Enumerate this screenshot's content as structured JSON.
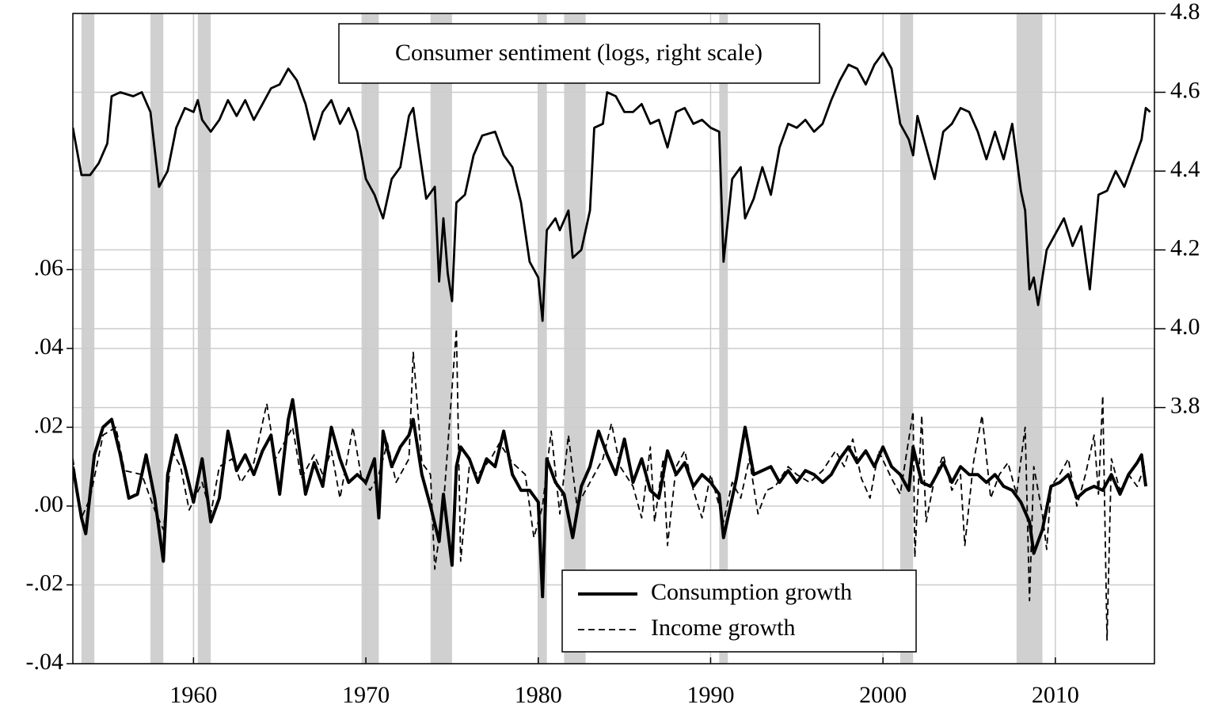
{
  "chart_data": {
    "type": "line",
    "xlim": [
      1953,
      2015.75
    ],
    "xticks": [
      1960,
      1970,
      1980,
      1990,
      2000,
      2010
    ],
    "ylim": [
      -0.04,
      0.125
    ],
    "yticks": [
      {
        "value": -0.04,
        "label": "-.04"
      },
      {
        "value": -0.02,
        "label": "-.02"
      },
      {
        "value": 0,
        "label": ".00"
      },
      {
        "value": 0.02,
        "label": ".02"
      },
      {
        "value": 0.04,
        "label": ".04"
      },
      {
        "value": 0.06,
        "label": ".06"
      }
    ],
    "y2lim": [
      3.15,
      4.8
    ],
    "y2ticks": [
      3.8,
      {
        "value": 4,
        "label": "4.0"
      },
      4.2,
      4.4,
      4.6,
      4.8
    ],
    "grid": true,
    "recession_color": "#d0d0d0",
    "recessions": [
      [
        1953.5,
        1954.25
      ],
      [
        1957.5,
        1958.25
      ],
      [
        1960.25,
        1961
      ],
      [
        1969.75,
        1970.75
      ],
      [
        1973.75,
        1975
      ],
      [
        1980,
        1980.5
      ],
      [
        1981.5,
        1982.75
      ],
      [
        1990.5,
        1991
      ],
      [
        2001,
        2001.75
      ],
      [
        2007.75,
        2009.25
      ]
    ],
    "series": [
      {
        "name": "Consumer sentiment (logs, right scale)",
        "color": "#000000",
        "axis": "y2",
        "style": "solid",
        "x": [
          1953,
          1953.5,
          1954,
          1954.5,
          1955,
          1955.25,
          1955.75,
          1956.5,
          1957,
          1957.5,
          1958,
          1958.5,
          1959,
          1959.5,
          1960,
          1960.25,
          1960.5,
          1961,
          1961.5,
          1962,
          1962.5,
          1963,
          1963.5,
          1964,
          1964.5,
          1965,
          1965.5,
          1966,
          1966.5,
          1967,
          1967.5,
          1968,
          1968.5,
          1969,
          1969.5,
          1970,
          1970.5,
          1971,
          1971.5,
          1972,
          1972.5,
          1972.75,
          1973,
          1973.5,
          1974,
          1974.25,
          1974.5,
          1974.75,
          1975,
          1975.25,
          1975.75,
          1976.25,
          1976.75,
          1977.5,
          1978,
          1978.5,
          1979,
          1979.5,
          1980,
          1980.25,
          1980.5,
          1981,
          1981.25,
          1981.75,
          1982,
          1982.5,
          1983,
          1983.25,
          1983.75,
          1984,
          1984.5,
          1985,
          1985.5,
          1986,
          1986.5,
          1987,
          1987.5,
          1988,
          1988.5,
          1989,
          1989.5,
          1990,
          1990.5,
          1990.75,
          1991.25,
          1991.75,
          1992,
          1992.5,
          1993,
          1993.5,
          1994,
          1994.5,
          1995,
          1995.5,
          1996,
          1996.5,
          1997,
          1997.5,
          1998,
          1998.5,
          1999,
          1999.5,
          2000,
          2000.5,
          2001,
          2001.5,
          2001.75,
          2002,
          2002.5,
          2003,
          2003.5,
          2004,
          2004.5,
          2005,
          2005.5,
          2006,
          2006.5,
          2007,
          2007.5,
          2008,
          2008.25,
          2008.5,
          2008.75,
          2009,
          2009.5,
          2010,
          2010.5,
          2011,
          2011.5,
          2012,
          2012.5,
          2013,
          2013.5,
          2014,
          2014.5,
          2015,
          2015.25,
          2015.5
        ],
        "values": [
          4.51,
          4.39,
          4.39,
          4.42,
          4.47,
          4.59,
          4.6,
          4.59,
          4.6,
          4.55,
          4.36,
          4.4,
          4.51,
          4.56,
          4.55,
          4.58,
          4.53,
          4.5,
          4.53,
          4.58,
          4.54,
          4.58,
          4.53,
          4.57,
          4.61,
          4.62,
          4.66,
          4.63,
          4.57,
          4.48,
          4.55,
          4.58,
          4.52,
          4.56,
          4.5,
          4.38,
          4.34,
          4.28,
          4.38,
          4.41,
          4.54,
          4.56,
          4.48,
          4.33,
          4.36,
          4.12,
          4.28,
          4.14,
          4.07,
          4.32,
          4.34,
          4.44,
          4.49,
          4.5,
          4.44,
          4.41,
          4.32,
          4.17,
          4.13,
          4.02,
          4.25,
          4.28,
          4.25,
          4.3,
          4.18,
          4.2,
          4.3,
          4.51,
          4.52,
          4.6,
          4.59,
          4.55,
          4.55,
          4.57,
          4.52,
          4.53,
          4.46,
          4.55,
          4.56,
          4.52,
          4.53,
          4.51,
          4.5,
          4.17,
          4.38,
          4.41,
          4.28,
          4.33,
          4.41,
          4.34,
          4.46,
          4.52,
          4.51,
          4.53,
          4.5,
          4.52,
          4.58,
          4.63,
          4.67,
          4.66,
          4.62,
          4.67,
          4.7,
          4.66,
          4.52,
          4.48,
          4.44,
          4.54,
          4.46,
          4.38,
          4.5,
          4.52,
          4.56,
          4.55,
          4.5,
          4.43,
          4.5,
          4.43,
          4.52,
          4.35,
          4.3,
          4.1,
          4.13,
          4.06,
          4.2,
          4.24,
          4.28,
          4.21,
          4.26,
          4.1,
          4.34,
          4.35,
          4.4,
          4.36,
          4.42,
          4.48,
          4.56,
          4.55
        ]
      },
      {
        "name": "Consumption growth",
        "color": "#000000",
        "axis": "y",
        "style": "solid",
        "x": [
          1953,
          1953.5,
          1953.75,
          1954.25,
          1954.75,
          1955.25,
          1955.75,
          1956.25,
          1956.75,
          1957.25,
          1957.75,
          1958.25,
          1958.5,
          1959,
          1959.5,
          1960,
          1960.5,
          1961,
          1961.5,
          1962,
          1962.5,
          1963,
          1963.5,
          1964,
          1964.5,
          1965,
          1965.5,
          1965.75,
          1966.5,
          1967,
          1967.5,
          1968,
          1968.5,
          1969,
          1969.5,
          1970,
          1970.5,
          1970.75,
          1971,
          1971.5,
          1972,
          1972.5,
          1972.75,
          1973.25,
          1973.75,
          1974.25,
          1974.5,
          1975,
          1975.25,
          1975.5,
          1976,
          1976.5,
          1977,
          1977.5,
          1978,
          1978.5,
          1979,
          1979.5,
          1980,
          1980.25,
          1980.5,
          1981,
          1981.5,
          1982,
          1982.5,
          1983,
          1983.5,
          1984,
          1984.5,
          1985,
          1985.5,
          1986,
          1986.5,
          1987,
          1987.5,
          1988,
          1988.5,
          1989,
          1989.5,
          1990,
          1990.5,
          1990.75,
          1991.5,
          1992,
          1992.5,
          1993,
          1993.5,
          1994,
          1994.5,
          1995,
          1995.5,
          1996,
          1996.5,
          1997,
          1997.5,
          1998,
          1998.5,
          1999,
          1999.5,
          2000,
          2000.5,
          2001,
          2001.5,
          2001.75,
          2002.25,
          2002.75,
          2003.5,
          2004,
          2004.5,
          2005,
          2005.5,
          2006,
          2006.5,
          2007,
          2007.5,
          2008,
          2008.5,
          2008.75,
          2009.25,
          2009.75,
          2010.25,
          2010.75,
          2011.25,
          2011.75,
          2012.25,
          2012.75,
          2013.25,
          2013.75,
          2014.25,
          2014.75,
          2015,
          2015.25
        ],
        "values": [
          0.01,
          -0.003,
          -0.007,
          0.013,
          0.02,
          0.022,
          0.013,
          0.002,
          0.003,
          0.013,
          0.002,
          -0.014,
          0.008,
          0.018,
          0.01,
          0.001,
          0.012,
          -0.004,
          0.002,
          0.019,
          0.009,
          0.013,
          0.008,
          0.014,
          0.018,
          0.003,
          0.022,
          0.027,
          0.003,
          0.011,
          0.005,
          0.02,
          0.012,
          0.006,
          0.008,
          0.006,
          0.012,
          -0.003,
          0.019,
          0.01,
          0.015,
          0.018,
          0.022,
          0.008,
          0,
          -0.009,
          0.003,
          -0.015,
          0.01,
          0.015,
          0.012,
          0.006,
          0.012,
          0.01,
          0.019,
          0.008,
          0.004,
          0.004,
          0.001,
          -0.023,
          0.012,
          0.006,
          0.003,
          -0.008,
          0.005,
          0.01,
          0.019,
          0.013,
          0.008,
          0.017,
          0.006,
          0.012,
          0.004,
          0.002,
          0.014,
          0.008,
          0.011,
          0.005,
          0.008,
          0.006,
          0.003,
          -0.008,
          0.007,
          0.02,
          0.008,
          0.009,
          0.01,
          0.006,
          0.009,
          0.006,
          0.009,
          0.008,
          0.006,
          0.008,
          0.012,
          0.015,
          0.011,
          0.014,
          0.01,
          0.015,
          0.01,
          0.008,
          0.004,
          0.015,
          0.006,
          0.005,
          0.011,
          0.006,
          0.01,
          0.008,
          0.008,
          0.006,
          0.008,
          0.005,
          0.004,
          0.001,
          -0.004,
          -0.012,
          -0.006,
          0.005,
          0.006,
          0.008,
          0.002,
          0.004,
          0.005,
          0.004,
          0.008,
          0.003,
          0.008,
          0.011,
          0.013,
          0.005
        ]
      },
      {
        "name": "Income growth",
        "color": "#000000",
        "axis": "y",
        "style": "dashed",
        "x": [
          1953,
          1953.5,
          1954,
          1954.75,
          1955.5,
          1956,
          1957,
          1957.75,
          1958.25,
          1958.75,
          1959.25,
          1959.75,
          1960.5,
          1961,
          1961.5,
          1962.25,
          1962.75,
          1963.5,
          1964.25,
          1964.75,
          1965.75,
          1966.25,
          1967,
          1967.5,
          1968,
          1968.5,
          1969.25,
          1969.75,
          1970.25,
          1970.75,
          1971.25,
          1971.75,
          1972.5,
          1972.75,
          1973.25,
          1973.75,
          1974,
          1974.5,
          1975.25,
          1975.5,
          1976,
          1976.5,
          1977.25,
          1977.75,
          1978.5,
          1979.25,
          1979.75,
          1980.25,
          1980.75,
          1981.25,
          1981.75,
          1982.25,
          1983,
          1983.75,
          1984.25,
          1984.75,
          1985.5,
          1986,
          1986.5,
          1986.75,
          1987.25,
          1987.5,
          1988,
          1988.5,
          1989,
          1989.5,
          1990,
          1990.75,
          1991.25,
          1991.75,
          1992.25,
          1992.75,
          1993.25,
          1993.75,
          1994.5,
          1995,
          1995.75,
          1996.5,
          1997.25,
          1997.75,
          1998.25,
          1998.75,
          1999.25,
          1999.75,
          2000.5,
          2001,
          2001.75,
          2001.85,
          2002.25,
          2002.5,
          2003,
          2003.5,
          2004,
          2004.5,
          2004.75,
          2005.25,
          2005.75,
          2006.25,
          2006.75,
          2007.25,
          2007.75,
          2008.25,
          2008.5,
          2008.75,
          2009.25,
          2009.5,
          2009.75,
          2010.25,
          2010.75,
          2011.25,
          2011.75,
          2012.25,
          2012.5,
          2012.75,
          2013,
          2013.25,
          2013.75,
          2014.25,
          2014.75,
          2015.25
        ],
        "values": [
          0.012,
          -0.003,
          0.002,
          0.018,
          0.02,
          0.009,
          0.008,
          -0.001,
          -0.006,
          0.014,
          0.01,
          -0.001,
          0.006,
          -0.002,
          0.01,
          0.012,
          0.006,
          0.011,
          0.026,
          0.012,
          0.02,
          0.007,
          0.013,
          0.008,
          0.014,
          0.002,
          0.02,
          0.007,
          0.004,
          0.008,
          0.016,
          0.006,
          0.012,
          0.039,
          0.011,
          0.008,
          -0.016,
          0,
          0.045,
          -0.014,
          0.01,
          0.008,
          0.012,
          0.016,
          0.011,
          0.008,
          -0.008,
          0,
          0.019,
          -0.002,
          0.018,
          0,
          0.006,
          0.012,
          0.021,
          0.01,
          0.005,
          -0.003,
          0.015,
          -0.004,
          0.012,
          -0.01,
          0.01,
          0.014,
          0.004,
          -0.003,
          0.008,
          -0.004,
          0.006,
          0.002,
          0.012,
          -0.002,
          0.004,
          0.005,
          0.01,
          0.008,
          0.006,
          0.009,
          0.014,
          0.01,
          0.017,
          0.007,
          0.002,
          0.014,
          0.007,
          0.003,
          0.024,
          -0.013,
          0.023,
          -0.004,
          0.007,
          0.013,
          0.004,
          0.008,
          -0.01,
          0.011,
          0.023,
          0.002,
          0.008,
          0.011,
          0.003,
          0.02,
          -0.024,
          0.01,
          -0.002,
          -0.011,
          0.005,
          0.008,
          0.012,
          0,
          0.008,
          0.018,
          0.003,
          0.028,
          -0.034,
          0.012,
          0.004,
          0.008,
          0.005,
          0.011
        ]
      }
    ]
  }
}
